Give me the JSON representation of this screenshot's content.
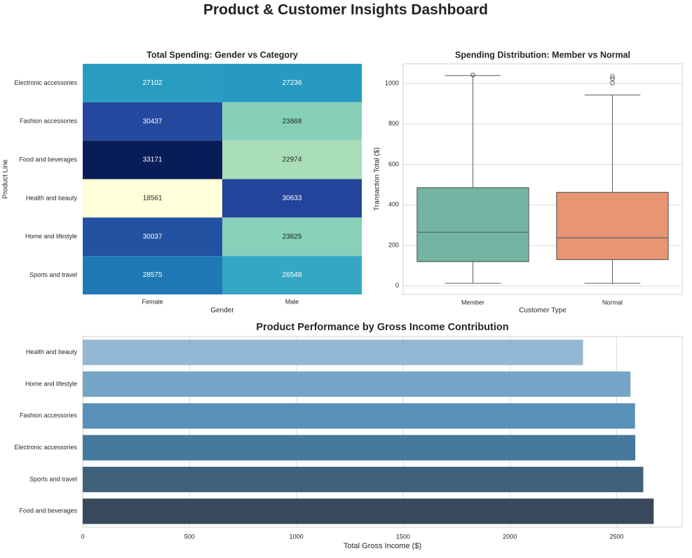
{
  "title": "Product & Customer Insights Dashboard",
  "chart_data": [
    {
      "type": "heatmap",
      "title": "Total Spending: Gender vs Category",
      "xlabel": "Gender",
      "ylabel": "Product Line",
      "x_categories": [
        "Female",
        "Male"
      ],
      "y_categories": [
        "Electronic accessories",
        "Fashion accessories",
        "Food and beverages",
        "Health and beauty",
        "Home and lifestyle",
        "Sports and travel"
      ],
      "values": [
        [
          27102,
          27236
        ],
        [
          30437,
          23868
        ],
        [
          33171,
          22974
        ],
        [
          18561,
          30633
        ],
        [
          30037,
          23825
        ],
        [
          28575,
          26548
        ]
      ],
      "colormap": "YlGnBu"
    },
    {
      "type": "box",
      "title": "Spending Distribution: Member vs Normal",
      "xlabel": "Customer Type",
      "ylabel": "Transaction Total ($)",
      "ylim": [
        -42,
        1097
      ],
      "yticks": [
        0,
        200,
        400,
        600,
        800,
        1000
      ],
      "grid": true,
      "boxes": [
        {
          "name": "Member",
          "whisker_low": 13,
          "q1": 120,
          "median": 265,
          "q3": 485,
          "whisker_high": 1039,
          "outliers": [
            1042
          ],
          "color": "#73b5a2"
        },
        {
          "name": "Normal",
          "whisker_low": 13,
          "q1": 130,
          "median": 237,
          "q3": 462,
          "whisker_high": 943,
          "outliers": [
            1002,
            1023,
            1034
          ],
          "color": "#e89574"
        }
      ]
    },
    {
      "type": "bar",
      "orientation": "horizontal",
      "title": "Product Performance by Gross Income Contribution",
      "xlabel": "Total Gross Income ($)",
      "ylabel": "",
      "xlim": [
        0,
        2807
      ],
      "xticks": [
        0,
        500,
        1000,
        1500,
        2000,
        2500
      ],
      "grid": true,
      "categories": [
        "Health and beauty",
        "Home and lifestyle",
        "Fashion accessories",
        "Electronic accessories",
        "Sports and travel",
        "Food and beverages"
      ],
      "values": [
        2342.6,
        2564.9,
        2586.0,
        2587.5,
        2624.9,
        2673.6
      ],
      "colors": [
        "#94b8d3",
        "#75a5c6",
        "#5890ba",
        "#45799e",
        "#3f617a",
        "#37495a"
      ]
    }
  ]
}
